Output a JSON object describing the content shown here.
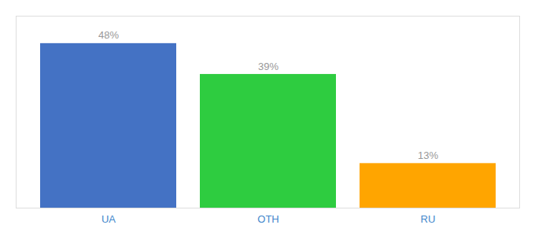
{
  "chart_data": {
    "type": "bar",
    "categories": [
      "UA",
      "OTH",
      "RU"
    ],
    "values": [
      48,
      39,
      13
    ],
    "value_labels": [
      "48%",
      "39%",
      "13%"
    ],
    "colors": [
      "#4472C4",
      "#2ECC40",
      "#FFA500"
    ],
    "ylim": [
      0,
      56
    ],
    "data_labels": true,
    "tick_labels": "x",
    "grid": false
  }
}
